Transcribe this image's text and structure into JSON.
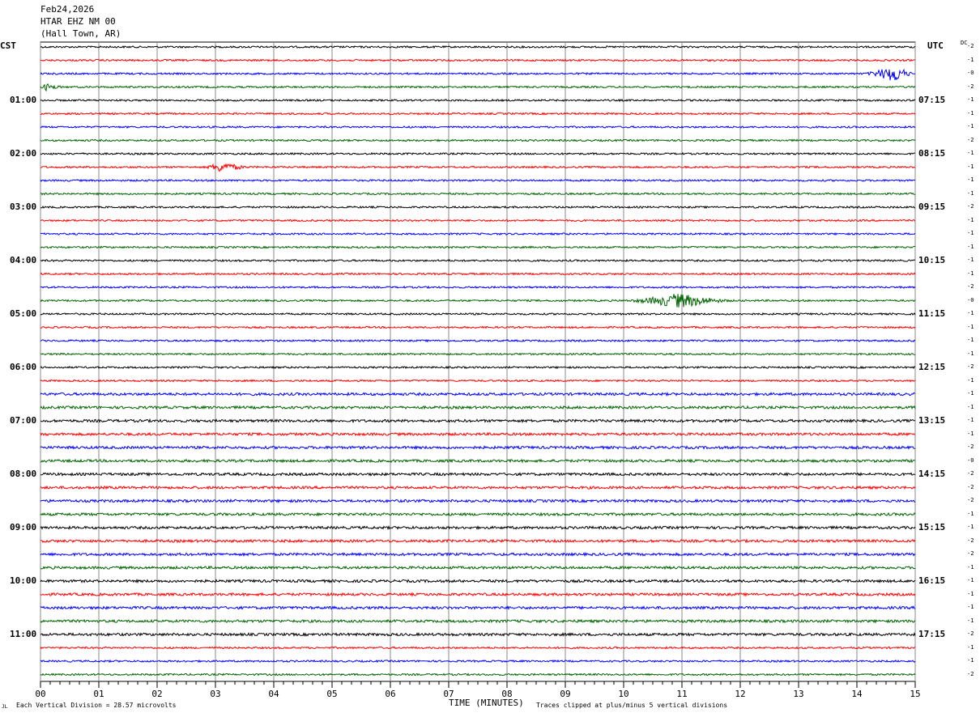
{
  "header": {
    "date": "Feb24,2026",
    "station": "HTAR EHZ NM 00",
    "location": "(Hall Town, AR)"
  },
  "chart_data": {
    "type": "line",
    "title": "Feb24,2026 HTAR EHZ NM 00 (Hall Town, AR)",
    "xlabel": "TIME (MINUTES)",
    "xlim": [
      0,
      15
    ],
    "x_ticks": [
      "00",
      "01",
      "02",
      "03",
      "04",
      "05",
      "06",
      "07",
      "08",
      "09",
      "10",
      "11",
      "12",
      "13",
      "14",
      "15"
    ],
    "left_axis_label": "CST",
    "right_axis_label": "UTC",
    "dc_label": "DC",
    "left_hour_labels": [
      "01:00",
      "02:00",
      "03:00",
      "04:00",
      "05:00",
      "06:00",
      "07:00",
      "08:00",
      "09:00",
      "10:00",
      "11:00"
    ],
    "right_hour_labels": [
      "07:15",
      "08:15",
      "09:15",
      "10:15",
      "11:15",
      "12:15",
      "13:15",
      "14:15",
      "15:15",
      "16:15",
      "17:15"
    ],
    "trace_count": 48,
    "trace_minutes": 15,
    "trace_colors": [
      "#000000",
      "#ff0000",
      "#0000ff",
      "#006400"
    ],
    "dc_offsets": [
      "-2",
      "-1",
      "-0",
      "-2",
      "-1",
      "-1",
      "-1",
      "-2",
      "-1",
      "-1",
      "-1",
      "-1",
      "-2",
      "-1",
      "-1",
      "-1",
      "-1",
      "-1",
      "-2",
      "-0",
      "-1",
      "-1",
      "-1",
      "-1",
      "-2",
      "-1",
      "-1",
      "-1",
      "-1",
      "-1",
      "-2",
      "-0",
      "-2",
      "-2",
      "-2",
      "-1",
      "-1",
      "-2",
      "-2",
      "-1",
      "-1",
      "-1",
      "-1",
      "-1",
      "-2",
      "-1",
      "-1",
      "-2"
    ],
    "events": [
      {
        "trace": 2,
        "start_min": 14.1,
        "peak_min": 14.65,
        "end_min": 15,
        "amplitude_div": 1.6
      },
      {
        "trace": 3,
        "start_min": 0,
        "peak_min": 0.1,
        "end_min": 0.4,
        "amplitude_div": 0.6
      },
      {
        "trace": 9,
        "start_min": 2.8,
        "peak_min": 3.1,
        "end_min": 3.6,
        "amplitude_div": 1.0
      },
      {
        "trace": 19,
        "start_min": 10.0,
        "peak_min": 10.95,
        "end_min": 11.9,
        "amplitude_div": 1.4
      }
    ],
    "grid": true
  },
  "footer": {
    "scale": "Each Vertical Division =   28.57 microvolts",
    "clip": "Traces clipped at plus/minus 5 vertical divisions",
    "logo": "JL"
  }
}
